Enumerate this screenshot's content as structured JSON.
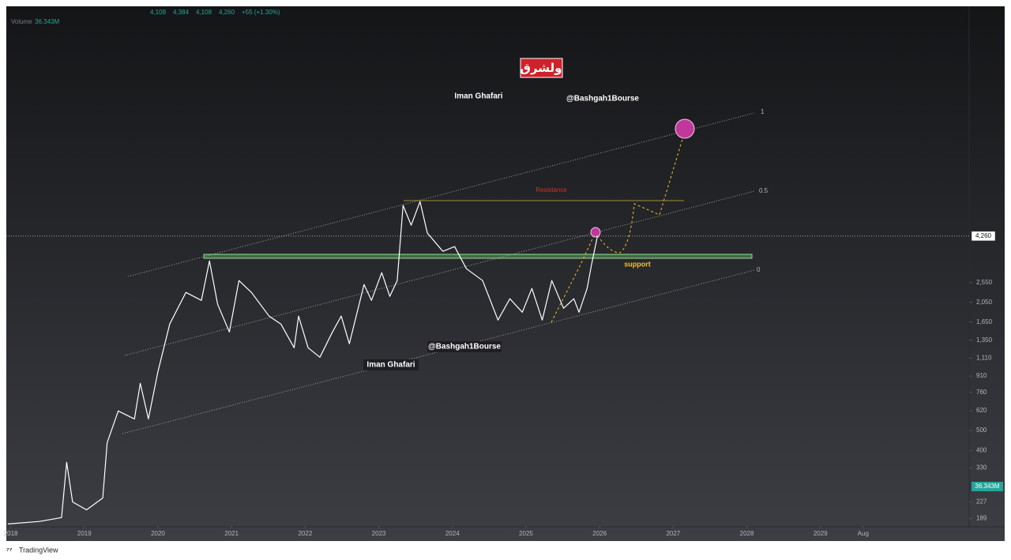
{
  "chart_data": {
    "type": "line",
    "header_values": [
      "4,108",
      "4,384",
      "4,108",
      "4,260",
      "+55 (+1.30%)"
    ],
    "volume_label": "Volume",
    "volume_value": "36.343M",
    "log_scale": true,
    "color": "#ffffff",
    "xlim": [
      2017.94,
      2031.02
    ],
    "ylim": [
      174,
      53700
    ],
    "xticks": [
      {
        "value": 2018,
        "label": "2018"
      },
      {
        "value": 2019,
        "label": "2019"
      },
      {
        "value": 2020,
        "label": "2020"
      },
      {
        "value": 2021,
        "label": "2021"
      },
      {
        "value": 2022,
        "label": "2022"
      },
      {
        "value": 2023,
        "label": "2023"
      },
      {
        "value": 2024,
        "label": "2024"
      },
      {
        "value": 2025,
        "label": "2025"
      },
      {
        "value": 2026,
        "label": "2026"
      },
      {
        "value": 2027,
        "label": "2027"
      },
      {
        "value": 2028,
        "label": "2028"
      },
      {
        "value": 2029,
        "label": "2029"
      },
      {
        "value": 2029.58,
        "label": "Aug"
      }
    ],
    "yticks": [
      189,
      227,
      330,
      400,
      500,
      620,
      760,
      910,
      {
        "value": 1110,
        "label": "1,110"
      },
      {
        "value": 1350,
        "label": "1,350"
      },
      {
        "value": 1650,
        "label": "1,650"
      },
      {
        "value": 2050,
        "label": "2,050"
      },
      {
        "value": 2550,
        "label": "2,550"
      }
    ],
    "last_price": {
      "value": 4260,
      "label": "4,260"
    },
    "x": [
      2017.96,
      2018.39,
      2018.69,
      2018.76,
      2018.84,
      2019.03,
      2019.25,
      2019.31,
      2019.46,
      2019.68,
      2019.76,
      2019.87,
      2020.0,
      2020.16,
      2020.38,
      2020.59,
      2020.7,
      2020.81,
      2020.97,
      2021.1,
      2021.27,
      2021.51,
      2021.67,
      2021.85,
      2021.91,
      2022.04,
      2022.2,
      2022.37,
      2022.49,
      2022.6,
      2022.8,
      2022.9,
      2023.04,
      2023.15,
      2023.25,
      2023.33,
      2023.44,
      2023.56,
      2023.66,
      2023.87,
      2024.03,
      2024.19,
      2024.41,
      2024.62,
      2024.78,
      2024.95,
      2025.08,
      2025.22,
      2025.35,
      2025.51,
      2025.65,
      2025.72,
      2025.83,
      2025.89,
      2025.97
    ],
    "values": [
      178,
      183,
      191,
      351,
      227,
      208,
      237,
      437,
      619,
      567,
      840,
      567,
      957,
      1615,
      2289,
      2097,
      3244,
      2008,
      1480,
      2609,
      2289,
      1762,
      1615,
      1243,
      1762,
      1243,
      1120,
      1480,
      1762,
      1299,
      2498,
      2097,
      2846,
      2191,
      2609,
      5973,
      4804,
      6236,
      4403,
      3602,
      3795,
      2973,
      2609,
      1687,
      2135,
      1840,
      2391,
      1687,
      2609,
      1922,
      2135,
      1840,
      2391,
      3105,
      4260
    ],
    "annotations": {
      "logo": "ولشرق",
      "author_top": "Iman Ghafari",
      "handle_top": "@Bashgah1Bourse",
      "handle_bottom": "@Bashgah1Bourse",
      "author_bottom": "Iman Ghafari",
      "resistance": "Resistance",
      "support": "support",
      "channel_top": "1",
      "channel_mid": "0.5",
      "channel_bottom": "0"
    },
    "brand": "TradingView"
  }
}
